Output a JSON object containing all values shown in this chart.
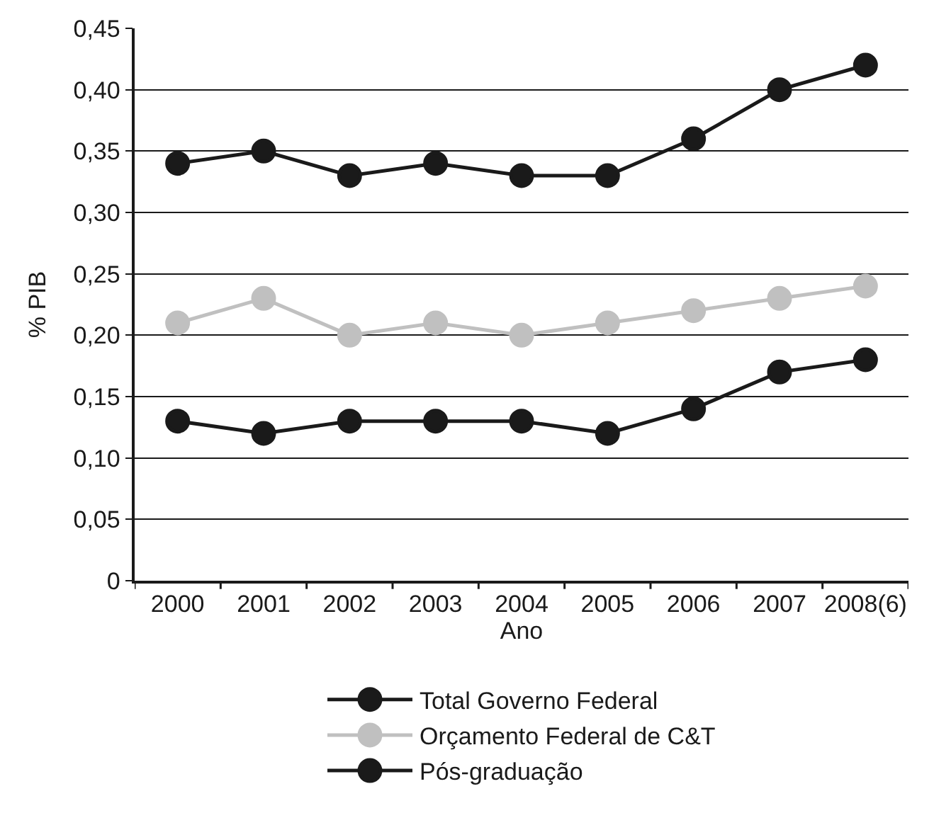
{
  "chart_data": {
    "type": "line",
    "xlabel": "Ano",
    "ylabel": "% PIB",
    "categories": [
      "2000",
      "2001",
      "2002",
      "2003",
      "2004",
      "2005",
      "2006",
      "2007",
      "2008(6)"
    ],
    "series": [
      {
        "name": "Total Governo Federal",
        "color": "#1a1a1a",
        "values": [
          0.34,
          0.35,
          0.33,
          0.34,
          0.33,
          0.33,
          0.36,
          0.4,
          0.42
        ]
      },
      {
        "name": "Orçamento Federal de C&T",
        "color": "#c0c0c0",
        "values": [
          0.21,
          0.23,
          0.2,
          0.21,
          0.2,
          0.21,
          0.22,
          0.23,
          0.24
        ]
      },
      {
        "name": "Pós-graduação",
        "color": "#1a1a1a",
        "values": [
          0.13,
          0.12,
          0.13,
          0.13,
          0.13,
          0.12,
          0.14,
          0.17,
          0.18
        ]
      }
    ],
    "ylim": [
      0,
      0.45
    ],
    "yticks": [
      0,
      {
        "value": 0.05,
        "label": "0,05"
      },
      {
        "value": 0.1,
        "label": "0,10"
      },
      {
        "value": 0.15,
        "label": "0,15"
      },
      {
        "value": 0.2,
        "label": "0,20"
      },
      {
        "value": 0.25,
        "label": "0,25"
      },
      {
        "value": 0.3,
        "label": "0,30"
      },
      {
        "value": 0.35,
        "label": "0,35"
      },
      {
        "value": 0.4,
        "label": "0,40"
      },
      {
        "value": 0.45,
        "label": "0,45"
      }
    ],
    "grid": "y",
    "legend": "bottom",
    "marker": "circle",
    "line_style": "solid"
  }
}
